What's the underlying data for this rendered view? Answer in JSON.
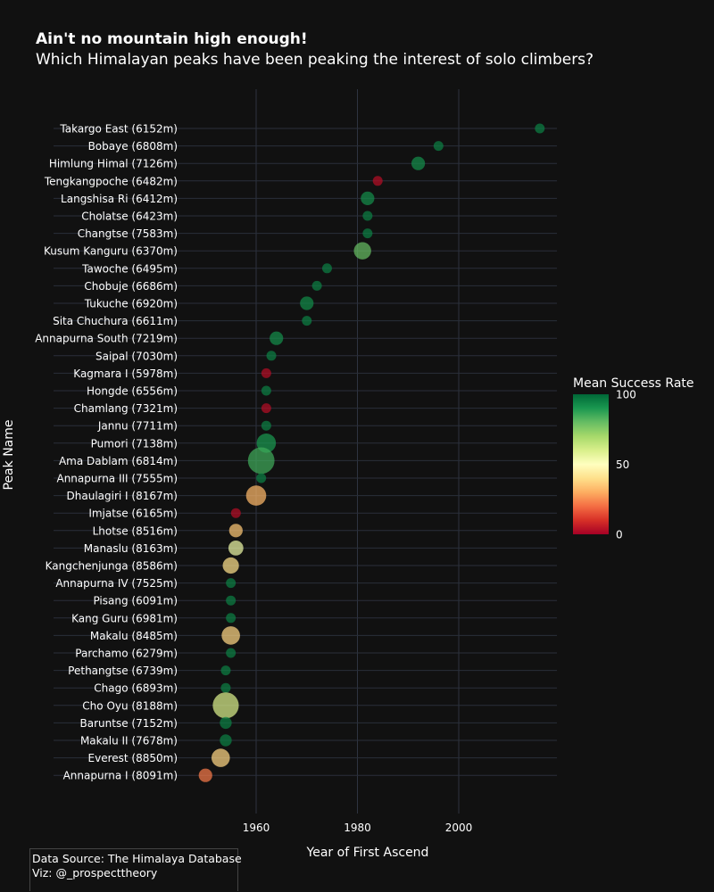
{
  "header": {
    "title": "Ain't no mountain high enough!",
    "subtitle": "Which Himalayan peaks have been peaking the interest of solo climbers?"
  },
  "footer": {
    "source": "Data Source: The Himalaya Database",
    "viz": "Viz: @_prospecttheory"
  },
  "chart_data": {
    "type": "scatter",
    "title": "Ain't no mountain high enough!",
    "subtitle": "Which Himalayan peaks have been peaking the interest of solo climbers?",
    "xlabel": "Year of First Ascend",
    "ylabel": "Peak Name",
    "xlim": [
      1938,
      2020
    ],
    "xticks": [
      1960,
      1980,
      2000
    ],
    "grid": true,
    "colorbar": {
      "title": "Mean Success Rate",
      "range": [
        0,
        100
      ],
      "ticks": [
        0,
        50,
        100
      ],
      "colorscale": [
        "#a50026",
        "#d73027",
        "#f46d43",
        "#fdae61",
        "#fee08b",
        "#ffffbf",
        "#d9ef8b",
        "#a6d96a",
        "#66bd63",
        "#1a9850",
        "#006837"
      ]
    },
    "points": [
      {
        "peak": "Takargo East (6152m)",
        "year": 2016,
        "success": 95,
        "size": 1
      },
      {
        "peak": "Bobaye (6808m)",
        "year": 1996,
        "success": 95,
        "size": 1
      },
      {
        "peak": "Himlung Himal (7126m)",
        "year": 1992,
        "success": 92,
        "size": 3
      },
      {
        "peak": "Tengkangpoche (6482m)",
        "year": 1984,
        "success": 3,
        "size": 1
      },
      {
        "peak": "Langshisa Ri (6412m)",
        "year": 1982,
        "success": 92,
        "size": 3
      },
      {
        "peak": "Cholatse (6423m)",
        "year": 1982,
        "success": 95,
        "size": 1
      },
      {
        "peak": "Changtse (7583m)",
        "year": 1982,
        "success": 95,
        "size": 1
      },
      {
        "peak": "Kusum Kanguru (6370m)",
        "year": 1981,
        "success": 80,
        "size": 6
      },
      {
        "peak": "Tawoche (6495m)",
        "year": 1974,
        "success": 95,
        "size": 1
      },
      {
        "peak": "Chobuje (6686m)",
        "year": 1972,
        "success": 95,
        "size": 1
      },
      {
        "peak": "Tukuche (6920m)",
        "year": 1970,
        "success": 93,
        "size": 3
      },
      {
        "peak": "Sita Chuchura (6611m)",
        "year": 1970,
        "success": 95,
        "size": 1
      },
      {
        "peak": "Annapurna South (7219m)",
        "year": 1964,
        "success": 92,
        "size": 3
      },
      {
        "peak": "Saipal (7030m)",
        "year": 1963,
        "success": 95,
        "size": 1
      },
      {
        "peak": "Kagmara I (5978m)",
        "year": 1962,
        "success": 3,
        "size": 1
      },
      {
        "peak": "Hongde (6556m)",
        "year": 1962,
        "success": 95,
        "size": 1
      },
      {
        "peak": "Chamlang (7321m)",
        "year": 1962,
        "success": 3,
        "size": 1
      },
      {
        "peak": "Jannu (7711m)",
        "year": 1962,
        "success": 95,
        "size": 1
      },
      {
        "peak": "Pumori (7138m)",
        "year": 1962,
        "success": 90,
        "size": 8
      },
      {
        "peak": "Ama Dablam (6814m)",
        "year": 1961,
        "success": 85,
        "size": 18
      },
      {
        "peak": "Annapurna III (7555m)",
        "year": 1961,
        "success": 95,
        "size": 1
      },
      {
        "peak": "Dhaulagiri I (8167m)",
        "year": 1960,
        "success": 32,
        "size": 9
      },
      {
        "peak": "Imjatse (6165m)",
        "year": 1956,
        "success": 3,
        "size": 1
      },
      {
        "peak": "Lhotse (8516m)",
        "year": 1956,
        "success": 35,
        "size": 3
      },
      {
        "peak": "Manaslu (8163m)",
        "year": 1956,
        "success": 55,
        "size": 4
      },
      {
        "peak": "Kangchenjunga (8586m)",
        "year": 1955,
        "success": 40,
        "size": 5
      },
      {
        "peak": "Annapurna IV (7525m)",
        "year": 1955,
        "success": 95,
        "size": 1
      },
      {
        "peak": "Pisang (6091m)",
        "year": 1955,
        "success": 95,
        "size": 1
      },
      {
        "peak": "Kang Guru (6981m)",
        "year": 1955,
        "success": 95,
        "size": 1
      },
      {
        "peak": "Makalu (8485m)",
        "year": 1955,
        "success": 38,
        "size": 7
      },
      {
        "peak": "Parchamo (6279m)",
        "year": 1955,
        "success": 95,
        "size": 1
      },
      {
        "peak": "Pethangtse (6739m)",
        "year": 1954,
        "success": 95,
        "size": 1
      },
      {
        "peak": "Chago (6893m)",
        "year": 1954,
        "success": 95,
        "size": 1
      },
      {
        "peak": "Cho Oyu (8188m)",
        "year": 1954,
        "success": 60,
        "size": 17
      },
      {
        "peak": "Baruntse (7152m)",
        "year": 1954,
        "success": 95,
        "size": 2
      },
      {
        "peak": "Makalu II (7678m)",
        "year": 1954,
        "success": 95,
        "size": 2
      },
      {
        "peak": "Everest (8850m)",
        "year": 1953,
        "success": 38,
        "size": 7
      },
      {
        "peak": "Annapurna I (8091m)",
        "year": 1950,
        "success": 22,
        "size": 3
      }
    ]
  }
}
